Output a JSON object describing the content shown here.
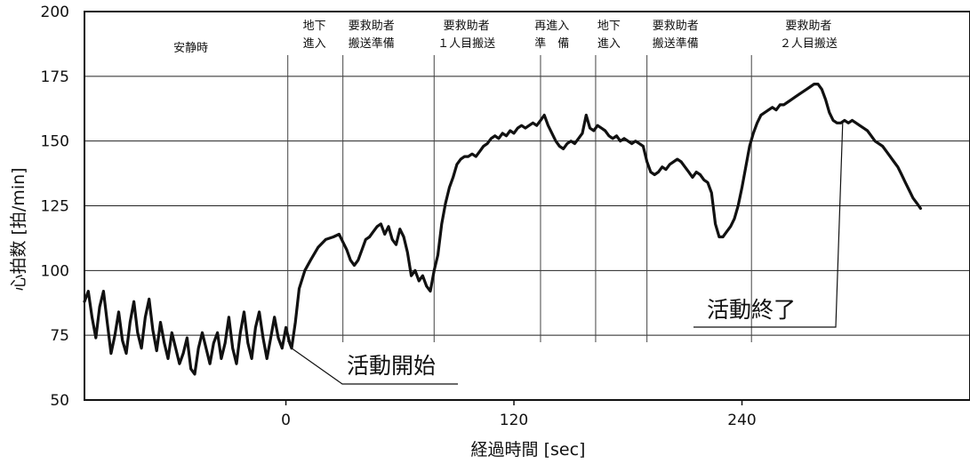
{
  "chart_data": {
    "type": "line",
    "title": "",
    "xlabel": "経過時間 [sec]",
    "ylabel": "心拍数 [拍/min]",
    "xlim": [
      -106,
      360
    ],
    "ylim": [
      50,
      200
    ],
    "x_ticks": [
      0,
      120,
      240
    ],
    "y_ticks": [
      50,
      75,
      100,
      125,
      150,
      175,
      200
    ],
    "grid": "horizontal",
    "legend": "none",
    "line_color": "#111111",
    "phases": [
      {
        "line1": "安静時",
        "line2": "",
        "center": -50,
        "marker": null
      },
      {
        "line1": "地下",
        "line2": "進入",
        "center": 15,
        "marker": 1
      },
      {
        "line1": "要救助者",
        "line2": "搬送準備",
        "center": 45,
        "marker": 30
      },
      {
        "line1": "要救助者",
        "line2": "１人目搬送",
        "center": 95,
        "marker": 78
      },
      {
        "line1": "再進入",
        "line2": "準　備",
        "center": 140,
        "marker": 134
      },
      {
        "line1": "地下",
        "line2": "進入",
        "center": 170,
        "marker": 163
      },
      {
        "line1": "要救助者",
        "line2": "搬送準備",
        "center": 205,
        "marker": 190
      },
      {
        "line1": "要救助者",
        "line2": "２人目搬送",
        "center": 275,
        "marker": 245
      }
    ],
    "annotations": [
      {
        "text": "活動開始",
        "x": 3,
        "y": 70
      },
      {
        "text": "活動終了",
        "x": 293,
        "y": 157
      }
    ],
    "series": [
      {
        "points": [
          [
            -106,
            88
          ],
          [
            -104,
            92
          ],
          [
            -102,
            82
          ],
          [
            -100,
            74
          ],
          [
            -98,
            86
          ],
          [
            -96,
            92
          ],
          [
            -94,
            80
          ],
          [
            -92,
            68
          ],
          [
            -90,
            75
          ],
          [
            -88,
            84
          ],
          [
            -86,
            73
          ],
          [
            -84,
            68
          ],
          [
            -82,
            80
          ],
          [
            -80,
            88
          ],
          [
            -78,
            76
          ],
          [
            -76,
            70
          ],
          [
            -74,
            82
          ],
          [
            -72,
            89
          ],
          [
            -70,
            77
          ],
          [
            -68,
            69
          ],
          [
            -66,
            80
          ],
          [
            -64,
            72
          ],
          [
            -62,
            66
          ],
          [
            -60,
            76
          ],
          [
            -58,
            70
          ],
          [
            -56,
            64
          ],
          [
            -54,
            68
          ],
          [
            -52,
            74
          ],
          [
            -50,
            62
          ],
          [
            -48,
            60
          ],
          [
            -46,
            70
          ],
          [
            -44,
            76
          ],
          [
            -42,
            70
          ],
          [
            -40,
            64
          ],
          [
            -38,
            72
          ],
          [
            -36,
            76
          ],
          [
            -34,
            66
          ],
          [
            -32,
            72
          ],
          [
            -30,
            82
          ],
          [
            -28,
            70
          ],
          [
            -26,
            64
          ],
          [
            -24,
            76
          ],
          [
            -22,
            84
          ],
          [
            -20,
            72
          ],
          [
            -18,
            66
          ],
          [
            -16,
            78
          ],
          [
            -14,
            84
          ],
          [
            -12,
            74
          ],
          [
            -10,
            66
          ],
          [
            -8,
            74
          ],
          [
            -6,
            82
          ],
          [
            -4,
            74
          ],
          [
            -2,
            70
          ],
          [
            0,
            78
          ],
          [
            2,
            72
          ],
          [
            3,
            70
          ],
          [
            5,
            80
          ],
          [
            7,
            93
          ],
          [
            10,
            100
          ],
          [
            13,
            104
          ],
          [
            17,
            109
          ],
          [
            21,
            112
          ],
          [
            25,
            113
          ],
          [
            28,
            114
          ],
          [
            30,
            111
          ],
          [
            32,
            108
          ],
          [
            34,
            104
          ],
          [
            36,
            102
          ],
          [
            38,
            104
          ],
          [
            40,
            108
          ],
          [
            42,
            112
          ],
          [
            44,
            113
          ],
          [
            46,
            115
          ],
          [
            48,
            117
          ],
          [
            50,
            118
          ],
          [
            52,
            114
          ],
          [
            54,
            117
          ],
          [
            56,
            112
          ],
          [
            58,
            110
          ],
          [
            60,
            116
          ],
          [
            62,
            113
          ],
          [
            64,
            107
          ],
          [
            66,
            98
          ],
          [
            68,
            100
          ],
          [
            70,
            96
          ],
          [
            72,
            98
          ],
          [
            74,
            94
          ],
          [
            76,
            92
          ],
          [
            78,
            100
          ],
          [
            80,
            106
          ],
          [
            82,
            118
          ],
          [
            84,
            126
          ],
          [
            86,
            132
          ],
          [
            88,
            136
          ],
          [
            90,
            141
          ],
          [
            92,
            143
          ],
          [
            94,
            144
          ],
          [
            96,
            144
          ],
          [
            98,
            145
          ],
          [
            100,
            144
          ],
          [
            102,
            146
          ],
          [
            104,
            148
          ],
          [
            106,
            149
          ],
          [
            108,
            151
          ],
          [
            110,
            152
          ],
          [
            112,
            151
          ],
          [
            114,
            153
          ],
          [
            116,
            152
          ],
          [
            118,
            154
          ],
          [
            120,
            153
          ],
          [
            122,
            155
          ],
          [
            124,
            156
          ],
          [
            126,
            155
          ],
          [
            128,
            156
          ],
          [
            130,
            157
          ],
          [
            132,
            156
          ],
          [
            134,
            158
          ],
          [
            136,
            160
          ],
          [
            138,
            156
          ],
          [
            140,
            153
          ],
          [
            142,
            150
          ],
          [
            144,
            148
          ],
          [
            146,
            147
          ],
          [
            148,
            149
          ],
          [
            150,
            150
          ],
          [
            152,
            149
          ],
          [
            154,
            151
          ],
          [
            156,
            153
          ],
          [
            158,
            160
          ],
          [
            160,
            155
          ],
          [
            162,
            154
          ],
          [
            164,
            156
          ],
          [
            166,
            155
          ],
          [
            168,
            154
          ],
          [
            170,
            152
          ],
          [
            172,
            151
          ],
          [
            174,
            152
          ],
          [
            176,
            150
          ],
          [
            178,
            151
          ],
          [
            180,
            150
          ],
          [
            182,
            149
          ],
          [
            184,
            150
          ],
          [
            186,
            149
          ],
          [
            188,
            148
          ],
          [
            190,
            142
          ],
          [
            192,
            138
          ],
          [
            194,
            137
          ],
          [
            196,
            138
          ],
          [
            198,
            140
          ],
          [
            200,
            139
          ],
          [
            202,
            141
          ],
          [
            204,
            142
          ],
          [
            206,
            143
          ],
          [
            208,
            142
          ],
          [
            210,
            140
          ],
          [
            212,
            138
          ],
          [
            214,
            136
          ],
          [
            216,
            138
          ],
          [
            218,
            137
          ],
          [
            220,
            135
          ],
          [
            222,
            134
          ],
          [
            224,
            130
          ],
          [
            226,
            118
          ],
          [
            228,
            113
          ],
          [
            230,
            113
          ],
          [
            232,
            115
          ],
          [
            234,
            117
          ],
          [
            236,
            120
          ],
          [
            238,
            125
          ],
          [
            240,
            132
          ],
          [
            242,
            140
          ],
          [
            244,
            148
          ],
          [
            246,
            153
          ],
          [
            248,
            157
          ],
          [
            250,
            160
          ],
          [
            252,
            161
          ],
          [
            254,
            162
          ],
          [
            256,
            163
          ],
          [
            258,
            162
          ],
          [
            260,
            164
          ],
          [
            262,
            164
          ],
          [
            264,
            165
          ],
          [
            266,
            166
          ],
          [
            268,
            167
          ],
          [
            270,
            168
          ],
          [
            272,
            169
          ],
          [
            274,
            170
          ],
          [
            276,
            171
          ],
          [
            278,
            172
          ],
          [
            280,
            172
          ],
          [
            282,
            170
          ],
          [
            284,
            166
          ],
          [
            286,
            161
          ],
          [
            288,
            158
          ],
          [
            290,
            157
          ],
          [
            292,
            157
          ],
          [
            294,
            158
          ],
          [
            296,
            157
          ],
          [
            298,
            158
          ],
          [
            300,
            157
          ],
          [
            302,
            156
          ],
          [
            304,
            155
          ],
          [
            306,
            154
          ],
          [
            308,
            152
          ],
          [
            310,
            150
          ],
          [
            312,
            149
          ],
          [
            314,
            148
          ],
          [
            316,
            146
          ],
          [
            318,
            144
          ],
          [
            320,
            142
          ],
          [
            322,
            140
          ],
          [
            324,
            137
          ],
          [
            326,
            134
          ],
          [
            328,
            131
          ],
          [
            330,
            128
          ],
          [
            332,
            126
          ],
          [
            334,
            124
          ]
        ]
      }
    ]
  }
}
